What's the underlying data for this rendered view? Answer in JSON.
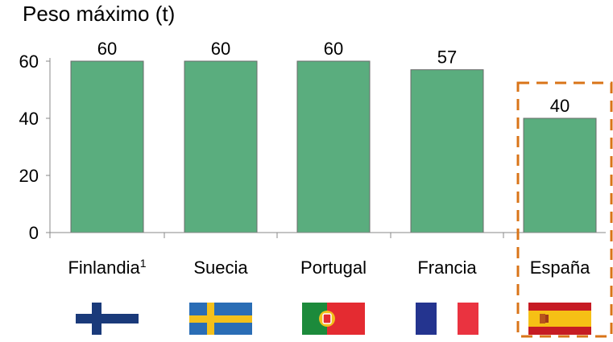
{
  "chart_data": {
    "type": "bar",
    "title": "Peso máximo (t)",
    "categories": [
      "Finlandia",
      "Suecia",
      "Portugal",
      "Francia",
      "España"
    ],
    "category_superscripts": [
      "1",
      "",
      "",
      "",
      ""
    ],
    "values": [
      60,
      60,
      60,
      57,
      40
    ],
    "data_labels": [
      "60",
      "60",
      "60",
      "57",
      "40"
    ],
    "ylim": [
      0,
      60
    ],
    "yticks": [
      "0",
      "20",
      "40",
      "60"
    ],
    "grid": false,
    "highlight": {
      "category": "España",
      "style": "dashed-box",
      "color": "#d97418"
    },
    "bar_color": "#5aad7e",
    "bar_edge_color": "#6b6b6b",
    "flags": [
      {
        "country": "Finlandia",
        "icon": "finland-flag-icon"
      },
      {
        "country": "Suecia",
        "icon": "sweden-flag-icon"
      },
      {
        "country": "Portugal",
        "icon": "portugal-flag-icon"
      },
      {
        "country": "Francia",
        "icon": "france-flag-icon"
      },
      {
        "country": "España",
        "icon": "spain-flag-icon"
      }
    ]
  }
}
